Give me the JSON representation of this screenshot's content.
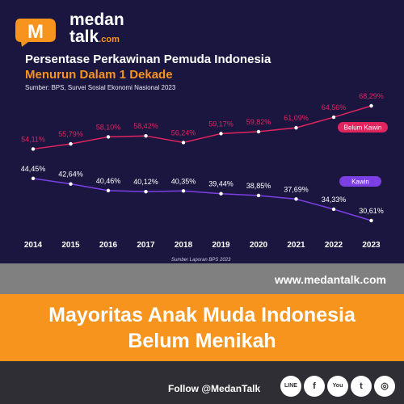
{
  "brand": {
    "logo_letter": "M",
    "name_line1": "medan",
    "name_line2": "talk",
    "name_suffix": ".com",
    "accent_color": "#f7941d"
  },
  "header": {
    "title": "Persentase Perkawinan Pemuda Indonesia",
    "subtitle": "Menurun Dalam 1 Dekade",
    "source": "Sumber: BPS, Survei Sosial Ekonomi Nasional 2023",
    "bottom_source": "Sumber Laporan BPS 2023"
  },
  "chart_data": {
    "type": "line",
    "title": "Persentase Perkawinan Pemuda Indonesia",
    "subtitle": "Menurun Dalam 1 Dekade",
    "categories": [
      "2014",
      "2015",
      "2016",
      "2017",
      "2018",
      "2019",
      "2020",
      "2021",
      "2022",
      "2023"
    ],
    "series": [
      {
        "name": "Belum Kawin",
        "color": "#e0245e",
        "values": [
          54.11,
          55.79,
          58.1,
          58.42,
          56.24,
          59.17,
          59.82,
          61.09,
          64.56,
          68.29
        ],
        "labels": [
          "54,11%",
          "55,79%",
          "58,10%",
          "58,42%",
          "56,24%",
          "59,17%",
          "59,82%",
          "61,09%",
          "64,56%",
          "68,29%"
        ]
      },
      {
        "name": "Kawin",
        "color": "#7b3fe4",
        "values": [
          44.45,
          42.64,
          40.46,
          40.12,
          40.35,
          39.44,
          38.85,
          37.69,
          34.33,
          30.61
        ],
        "labels": [
          "44,45%",
          "42,64%",
          "40,46%",
          "40,12%",
          "40,35%",
          "39,44%",
          "38,85%",
          "37,69%",
          "34,33%",
          "30,61%"
        ]
      }
    ],
    "xlabel": "",
    "ylabel": "",
    "ylim": [
      25,
      75
    ],
    "grid": false
  },
  "footer": {
    "url": "www.medantalk.com",
    "headline_line1": "Mayoritas Anak Muda Indonesia",
    "headline_line2": "Belum Menikah",
    "follow": "Follow @MedanTalk",
    "social_icons": [
      {
        "name": "line-icon",
        "glyph": "LINE"
      },
      {
        "name": "facebook-icon",
        "glyph": "f"
      },
      {
        "name": "youtube-icon",
        "glyph": "You"
      },
      {
        "name": "twitter-icon",
        "glyph": "t"
      },
      {
        "name": "instagram-icon",
        "glyph": "◎"
      }
    ]
  }
}
